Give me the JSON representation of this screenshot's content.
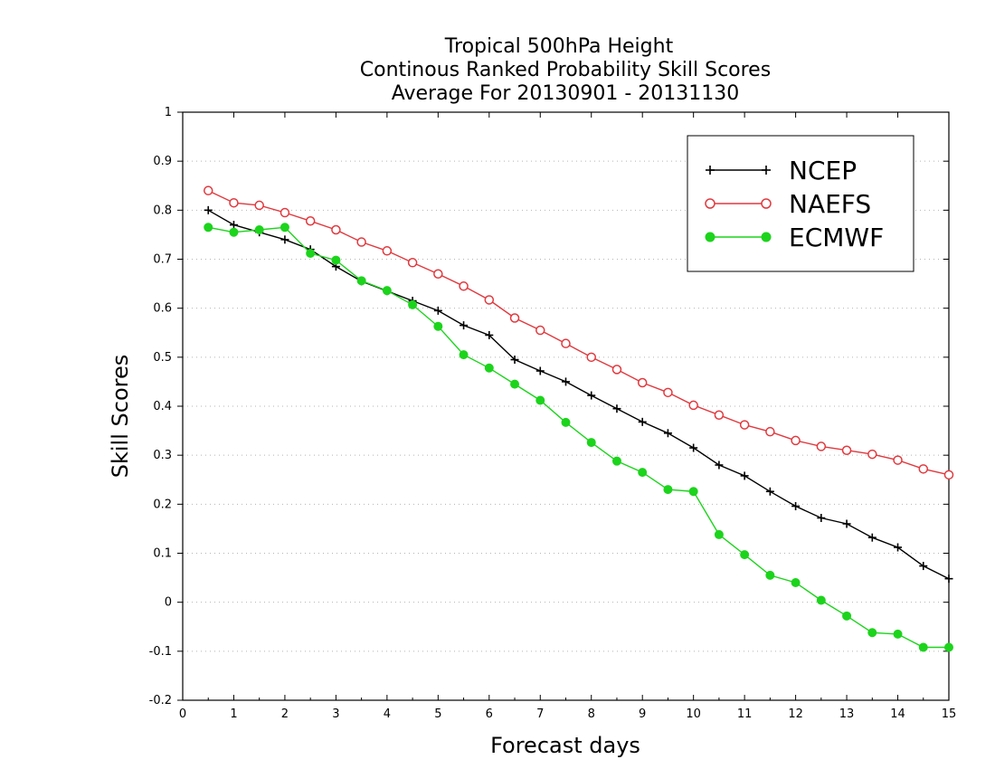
{
  "chart_data": {
    "type": "line",
    "title": [
      "Tropical 500hPa Height",
      "Continous Ranked Probability Skill Scores",
      "Average For 20130901 - 20131130"
    ],
    "xlabel": "Forecast days",
    "ylabel": "Skill Scores",
    "xlim": [
      0,
      15
    ],
    "ylim": [
      -0.2,
      1
    ],
    "x_ticks": [
      0,
      1,
      2,
      3,
      4,
      5,
      6,
      7,
      8,
      9,
      10,
      11,
      12,
      13,
      14,
      15
    ],
    "y_ticks": [
      -0.2,
      -0.1,
      0,
      0.1,
      0.2,
      0.3,
      0.4,
      0.5,
      0.6,
      0.7,
      0.8,
      0.9,
      1
    ],
    "y_tick_labels": [
      "-0.2",
      "-0.1",
      "0",
      "0.1",
      "0.2",
      "0.3",
      "0.4",
      "0.5",
      "0.6",
      "0.7",
      "0.8",
      "0.9",
      "1"
    ],
    "grid": true,
    "legend": "top-right",
    "x": [
      0.5,
      1.0,
      1.5,
      2.0,
      2.5,
      3.0,
      3.5,
      4.0,
      4.5,
      5.0,
      5.5,
      6.0,
      6.5,
      7.0,
      7.5,
      8.0,
      8.5,
      9.0,
      9.5,
      10.0,
      10.5,
      11.0,
      11.5,
      12.0,
      12.5,
      13.0,
      13.5,
      14.0,
      14.5,
      15.0
    ],
    "series": [
      {
        "name": "NCEP",
        "color": "#000000",
        "marker": "plus",
        "values": [
          0.8,
          0.77,
          0.755,
          0.74,
          0.72,
          0.685,
          0.655,
          0.635,
          0.615,
          0.595,
          0.565,
          0.545,
          0.495,
          0.472,
          0.45,
          0.422,
          0.395,
          0.368,
          0.345,
          0.315,
          0.28,
          0.258,
          0.226,
          0.196,
          0.172,
          0.16,
          0.132,
          0.112,
          0.074,
          0.048
        ]
      },
      {
        "name": "NAEFS",
        "color": "#e0393e",
        "marker": "open-circle",
        "values": [
          0.84,
          0.815,
          0.81,
          0.795,
          0.778,
          0.76,
          0.735,
          0.717,
          0.693,
          0.67,
          0.645,
          0.617,
          0.58,
          0.555,
          0.528,
          0.5,
          0.475,
          0.448,
          0.428,
          0.402,
          0.382,
          0.362,
          0.348,
          0.33,
          0.318,
          0.31,
          0.302,
          0.29,
          0.272,
          0.26
        ]
      },
      {
        "name": "ECMWF",
        "color": "#1cd41c",
        "marker": "filled-circle",
        "values": [
          0.765,
          0.755,
          0.76,
          0.765,
          0.712,
          0.698,
          0.656,
          0.636,
          0.607,
          0.563,
          0.505,
          0.478,
          0.445,
          0.412,
          0.367,
          0.326,
          0.288,
          0.265,
          0.23,
          0.226,
          0.138,
          0.097,
          0.055,
          0.04,
          0.004,
          -0.028,
          -0.062,
          -0.065,
          -0.092,
          -0.092
        ]
      }
    ]
  }
}
